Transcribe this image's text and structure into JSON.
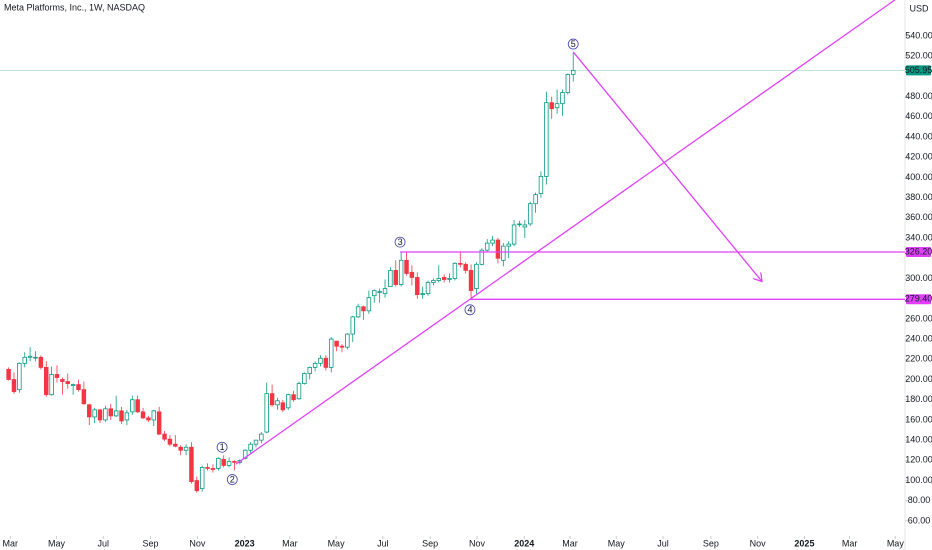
{
  "chart_data": {
    "type": "candlestick",
    "title": "Meta Platforms, Inc., 1W, NASDAQ",
    "currency": "USD",
    "up_color": "#089981",
    "down_color": "#f23645",
    "annotation_color": "#e040fb",
    "wave_color": "#3f3fb0",
    "xlim": [
      -1.6,
      166.7
    ],
    "ylim": [
      49.1,
      575.6
    ],
    "xticks": [
      {
        "value": 0.3,
        "label": "Mar"
      },
      {
        "value": 8.9,
        "label": "May"
      },
      {
        "value": 17.6,
        "label": "Jul"
      },
      {
        "value": 26.4,
        "label": "Sep"
      },
      {
        "value": 35.1,
        "label": "Nov"
      },
      {
        "value": 43.9,
        "label": "2023"
      },
      {
        "value": 52.3,
        "label": "Mar"
      },
      {
        "value": 60.9,
        "label": "May"
      },
      {
        "value": 69.6,
        "label": "Jul"
      },
      {
        "value": 78.4,
        "label": "Sep"
      },
      {
        "value": 87.1,
        "label": "Nov"
      },
      {
        "value": 95.9,
        "label": "2024"
      },
      {
        "value": 104.4,
        "label": "Mar"
      },
      {
        "value": 113.0,
        "label": "May"
      },
      {
        "value": 121.7,
        "label": "Jul"
      },
      {
        "value": 130.6,
        "label": "Sep"
      },
      {
        "value": 139.3,
        "label": "Nov"
      },
      {
        "value": 148.0,
        "label": "2025"
      },
      {
        "value": 156.4,
        "label": "Mar"
      },
      {
        "value": 164.9,
        "label": "May"
      }
    ],
    "yticks": [
      {
        "value": 60,
        "label": "60.00"
      },
      {
        "value": 80,
        "label": "80.00"
      },
      {
        "value": 100,
        "label": "100.00"
      },
      {
        "value": 120,
        "label": "120.00"
      },
      {
        "value": 140,
        "label": "140.00"
      },
      {
        "value": 160,
        "label": "160.00"
      },
      {
        "value": 180,
        "label": "180.00"
      },
      {
        "value": 200,
        "label": "200.00"
      },
      {
        "value": 220,
        "label": "220.00"
      },
      {
        "value": 240,
        "label": "240.00"
      },
      {
        "value": 260,
        "label": "260.00"
      },
      {
        "value": 300,
        "label": "300.00"
      },
      {
        "value": 340,
        "label": "340.00"
      },
      {
        "value": 360,
        "label": "360.00"
      },
      {
        "value": 380,
        "label": "380.00"
      },
      {
        "value": 400,
        "label": "400.00"
      },
      {
        "value": 420,
        "label": "420.00"
      },
      {
        "value": 440,
        "label": "440.00"
      },
      {
        "value": 460,
        "label": "460.00"
      },
      {
        "value": 480,
        "label": "480.00"
      },
      {
        "value": 520,
        "label": "520.00"
      },
      {
        "value": 540,
        "label": "540.00"
      }
    ],
    "ohlc": [
      [
        210,
        212,
        199,
        200
      ],
      [
        200,
        207,
        186,
        188
      ],
      [
        190,
        217,
        187,
        216
      ],
      [
        216,
        227,
        212,
        222
      ],
      [
        222,
        232,
        218,
        223
      ],
      [
        222,
        228,
        218,
        222
      ],
      [
        222,
        224,
        210,
        212
      ],
      [
        212,
        218,
        183,
        185
      ],
      [
        185,
        213,
        184,
        205
      ],
      [
        205,
        214,
        197,
        202
      ],
      [
        200,
        202,
        185,
        198
      ],
      [
        198,
        206,
        191,
        196
      ],
      [
        194,
        196,
        185,
        195
      ],
      [
        195,
        200,
        188,
        190
      ],
      [
        190,
        198,
        175,
        176
      ],
      [
        175,
        176,
        155,
        163
      ],
      [
        163,
        172,
        157,
        170
      ],
      [
        170,
        171,
        157,
        160
      ],
      [
        160,
        174,
        158,
        171
      ],
      [
        171,
        176,
        160,
        164
      ],
      [
        164,
        184,
        163,
        169
      ],
      [
        169,
        173,
        156,
        159
      ],
      [
        160,
        170,
        155,
        167
      ],
      [
        168,
        184,
        165,
        180
      ],
      [
        180,
        184,
        167,
        168
      ],
      [
        168,
        172,
        161,
        162
      ],
      [
        162,
        164,
        158,
        160
      ],
      [
        160,
        170,
        154,
        169
      ],
      [
        168,
        173,
        145,
        146
      ],
      [
        146,
        149,
        139,
        141
      ],
      [
        141,
        145,
        134,
        136
      ],
      [
        136,
        145,
        133,
        134
      ],
      [
        133,
        135,
        125,
        130
      ],
      [
        130,
        136,
        125,
        133
      ],
      [
        133,
        138,
        97,
        99
      ],
      [
        100,
        104,
        88,
        90
      ],
      [
        92,
        115,
        89,
        113
      ],
      [
        113,
        117,
        110,
        112
      ],
      [
        112,
        116,
        108,
        111
      ],
      [
        112,
        123,
        110,
        122
      ],
      [
        121,
        125,
        113,
        115
      ],
      [
        115,
        123,
        113,
        119
      ],
      [
        119,
        120,
        110,
        118
      ],
      [
        118,
        121,
        116,
        120
      ],
      [
        122,
        131,
        121,
        130
      ],
      [
        130,
        138,
        127,
        136
      ],
      [
        136,
        140,
        133,
        140
      ],
      [
        140,
        148,
        137,
        146
      ],
      [
        148,
        197,
        147,
        186
      ],
      [
        186,
        195,
        173,
        175
      ],
      [
        175,
        182,
        170,
        179
      ],
      [
        177,
        180,
        168,
        170
      ],
      [
        172,
        186,
        170,
        185
      ],
      [
        185,
        189,
        178,
        180
      ],
      [
        181,
        198,
        180,
        196
      ],
      [
        196,
        207,
        195,
        206
      ],
      [
        206,
        213,
        200,
        212
      ],
      [
        212,
        218,
        208,
        216
      ],
      [
        216,
        224,
        213,
        221
      ],
      [
        221,
        224,
        209,
        212
      ],
      [
        212,
        242,
        207,
        240
      ],
      [
        238,
        238,
        228,
        233
      ],
      [
        233,
        235,
        227,
        232
      ],
      [
        232,
        246,
        230,
        245
      ],
      [
        245,
        263,
        237,
        262
      ],
      [
        262,
        275,
        261,
        272
      ],
      [
        272,
        273,
        259,
        268
      ],
      [
        268,
        288,
        265,
        281
      ],
      [
        283,
        289,
        276,
        288
      ],
      [
        287,
        290,
        276,
        287
      ],
      [
        285,
        299,
        281,
        290
      ],
      [
        292,
        311,
        292,
        308
      ],
      [
        308,
        318,
        292,
        294
      ],
      [
        294,
        326,
        292,
        318
      ],
      [
        318,
        326,
        303,
        305
      ],
      [
        306,
        313,
        293,
        301
      ],
      [
        301,
        306,
        280,
        284
      ],
      [
        284,
        292,
        280,
        285
      ],
      [
        285,
        298,
        283,
        296
      ],
      [
        296,
        300,
        293,
        298
      ],
      [
        298,
        313,
        296,
        300
      ],
      [
        301,
        304,
        296,
        299
      ],
      [
        299,
        305,
        296,
        300
      ],
      [
        300,
        316,
        298,
        315
      ],
      [
        315,
        327,
        311,
        314
      ],
      [
        314,
        316,
        305,
        308
      ],
      [
        308,
        314,
        279.4,
        288
      ],
      [
        290,
        316,
        285,
        314
      ],
      [
        314,
        330,
        313,
        328
      ],
      [
        328,
        339,
        326,
        335
      ],
      [
        335,
        342,
        332,
        338
      ],
      [
        338,
        340,
        315,
        320
      ],
      [
        318,
        335,
        312,
        332
      ],
      [
        332,
        337,
        320,
        334
      ],
      [
        334,
        358,
        332,
        353
      ],
      [
        354,
        357,
        351,
        354
      ],
      [
        351,
        358,
        340,
        353
      ],
      [
        354,
        376,
        352,
        374
      ],
      [
        374,
        385,
        365,
        383
      ],
      [
        384,
        406,
        380,
        401
      ],
      [
        401,
        485,
        393,
        474
      ],
      [
        474,
        480,
        458,
        468
      ],
      [
        469,
        487,
        463,
        473
      ],
      [
        473,
        487,
        461,
        484
      ],
      [
        484,
        503,
        482,
        502
      ],
      [
        502,
        523,
        495,
        505.95
      ]
    ],
    "last_price": {
      "value": 505.95,
      "label": "505.95"
    },
    "levels": [
      {
        "value": 326.2,
        "label": "326.20",
        "start": 72.8
      },
      {
        "value": 279.4,
        "label": "279.40",
        "start": 85.8
      }
    ],
    "trendline": {
      "x": [
        42.3,
        164.8
      ],
      "y": [
        116.4,
        575.6
      ]
    },
    "arrow": {
      "x": [
        105.0,
        140.1
      ],
      "y": [
        524.2,
        297
      ]
    },
    "waves": [
      {
        "label": "1",
        "x": 39.7,
        "y": 133
      },
      {
        "label": "2",
        "x": 41.6,
        "y": 101
      },
      {
        "label": "3",
        "x": 72.8,
        "y": 336
      },
      {
        "label": "4",
        "x": 85.8,
        "y": 269
      },
      {
        "label": "5",
        "x": 105.0,
        "y": 532
      }
    ]
  }
}
